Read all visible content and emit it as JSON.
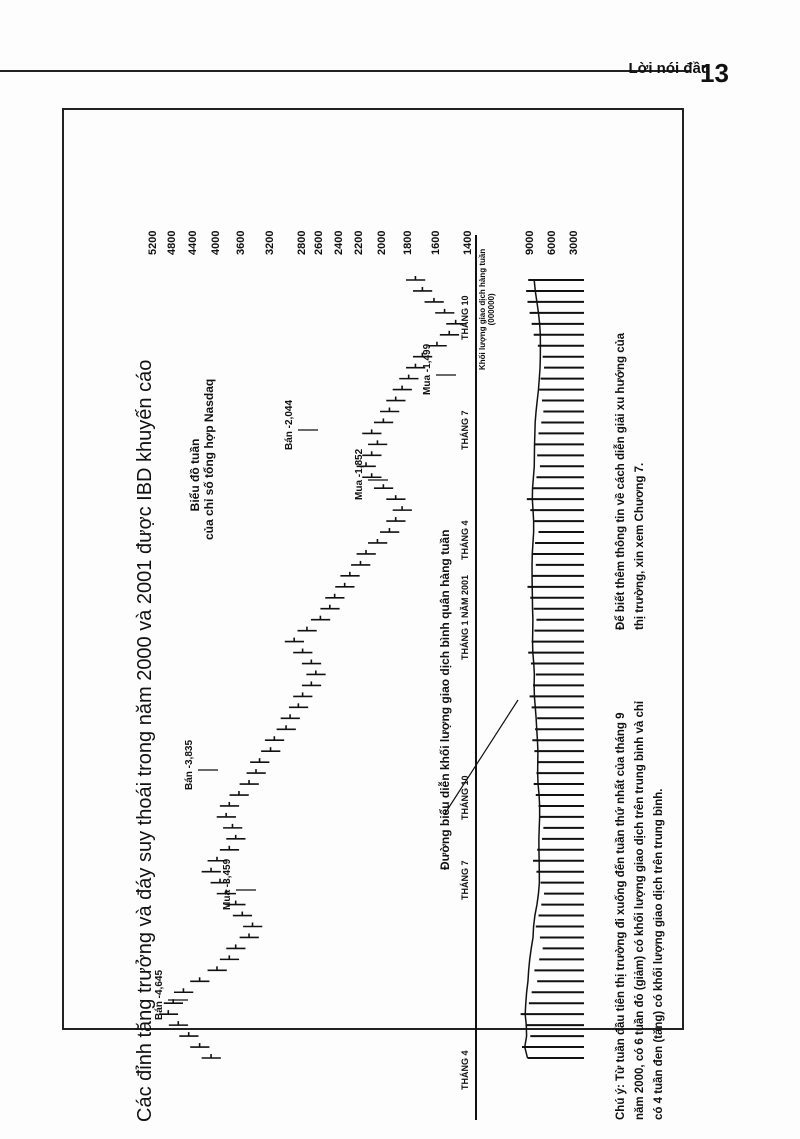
{
  "header": {
    "section": "Lời nói đầu",
    "page_number": "13"
  },
  "chart": {
    "title": "Các đỉnh tăng trưởng và đáy suy thoái trong năm 2000 và 2001 được IBD khuyến cáo",
    "subtitle_1": "Biểu đồ tuần",
    "subtitle_2": "của chỉ số tổng hợp Nasdaq",
    "price_ticks": [
      "5200",
      "4800",
      "4400",
      "4000",
      "3600",
      "3200",
      "2800",
      "2600",
      "2400",
      "2200",
      "2000",
      "1800",
      "1600",
      "1400"
    ],
    "volume_ticks": [
      "9000",
      "6000",
      "3000"
    ],
    "volume_label_1": "Khối lượng giao dịch hàng tuần",
    "volume_label_2": "(000000)",
    "months": [
      "THÁNG 4",
      "THÁNG 7",
      "THÁNG 10",
      "THÁNG 1 NĂM 2001",
      "THÁNG 4",
      "THÁNG 7",
      "THÁNG 10"
    ],
    "avg_line_label": "Đường biểu diễn khối lượng giao dịch bình quân hàng tuần",
    "annotations": [
      "Bán -4,645",
      "Mua -3,459",
      "Bán -3,835",
      "Mua -1,852",
      "Bán -2,044",
      "Mua -1,499"
    ],
    "weekly_close": [
      4100,
      4300,
      4500,
      4700,
      4900,
      4800,
      4600,
      4300,
      4000,
      3800,
      3700,
      3500,
      3450,
      3600,
      3700,
      3850,
      3950,
      4100,
      4000,
      3800,
      3700,
      3750,
      3850,
      3800,
      3650,
      3500,
      3400,
      3350,
      3200,
      3150,
      3000,
      2950,
      2850,
      2800,
      2700,
      2650,
      2700,
      2800,
      2900,
      2750,
      2600,
      2500,
      2450,
      2350,
      2300,
      2200,
      2150,
      2050,
      1950,
      1900,
      1850,
      1900,
      2000,
      2100,
      2150,
      2100,
      2050,
      2100,
      2000,
      1950,
      1900,
      1850,
      1800,
      1750,
      1700,
      1600,
      1520,
      1480,
      1550,
      1620,
      1700,
      1750
    ],
    "weekly_volume": [
      8200,
      9000,
      7800,
      8500,
      9200,
      8000,
      7600,
      6800,
      7200,
      6500,
      6000,
      6400,
      7000,
      6600,
      6200,
      5800,
      6300,
      6900,
      7400,
      6800,
      6100,
      5900,
      6400,
      6600,
      7000,
      7300,
      6900,
      6700,
      7200,
      7500,
      7100,
      6800,
      7600,
      7900,
      7400,
      7000,
      7700,
      8100,
      7600,
      7200,
      6900,
      7300,
      7800,
      8200,
      7600,
      7000,
      7400,
      7100,
      6600,
      7200,
      7800,
      8300,
      7500,
      6900,
      6400,
      6800,
      7200,
      6600,
      6200,
      5900,
      6100,
      6500,
      6300,
      5800,
      6000,
      6700,
      7300,
      7600,
      7900,
      8200,
      8400,
      8100
    ],
    "note": "Chú ý: Từ tuần đầu tiên thị trường đi xuống đến tuần thứ nhất của tháng 9 năm 2000, có 6 tuần đỏ (giảm) có khối lượng giao dịch trên trung bình và chỉ có 4 tuần đen (tăng) có khối lượng giao dịch trên trung bình.",
    "note_2": "Để biết thêm thông tin về cách diễn giải xu hướng của thị trường, xin xem Chương 7."
  }
}
